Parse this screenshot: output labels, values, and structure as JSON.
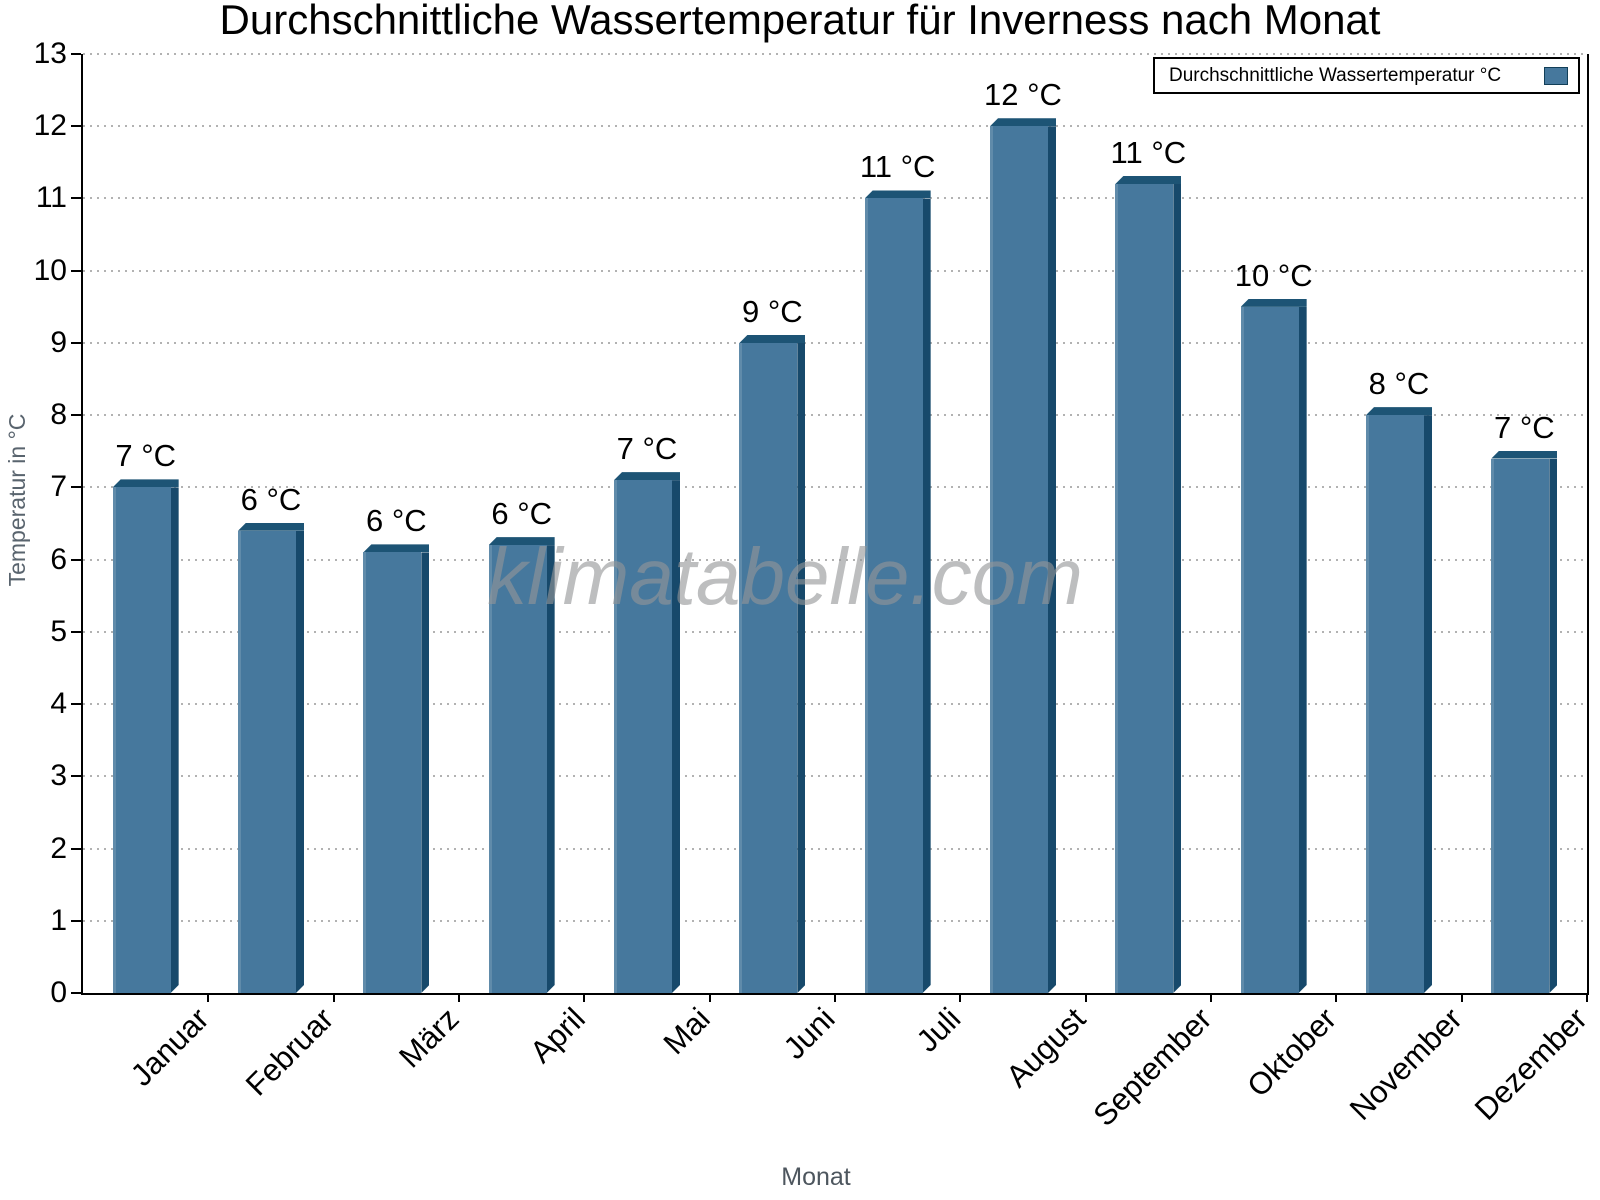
{
  "chart_data": {
    "type": "bar",
    "title": "Durchschnittliche Wassertemperatur für Inverness nach Monat",
    "legend": "Durchschnittliche Wassertemperatur °C",
    "legend_position": "top-right",
    "xlabel": "Monat",
    "ylabel": "Temperatur in °C",
    "watermark": "klimatabelle.com",
    "categories": [
      "Januar",
      "Februar",
      "März",
      "April",
      "Mai",
      "Juni",
      "Juli",
      "August",
      "September",
      "Oktober",
      "November",
      "Dezember"
    ],
    "values": [
      7.0,
      6.4,
      6.1,
      6.2,
      7.1,
      9.0,
      11.0,
      12.0,
      11.2,
      9.5,
      8.0,
      7.4
    ],
    "bar_labels": [
      "7 °C",
      "6 °C",
      "6 °C",
      "6 °C",
      "7 °C",
      "9 °C",
      "11 °C",
      "12 °C",
      "11 °C",
      "10 °C",
      "8 °C",
      "7 °C"
    ],
    "ylim": [
      0,
      13
    ],
    "y_ticks": [
      0,
      1,
      2,
      3,
      4,
      5,
      6,
      7,
      8,
      9,
      10,
      11,
      12,
      13
    ],
    "grid": "horizontal-dotted",
    "colors": {
      "bar_face": "#46789d",
      "bar_side": "#17496b",
      "bar_cap": "#1d5475",
      "axis": "#000000",
      "gridline": "#b2b2b2",
      "axis_title": "#59646e",
      "watermark": "#949698"
    }
  }
}
